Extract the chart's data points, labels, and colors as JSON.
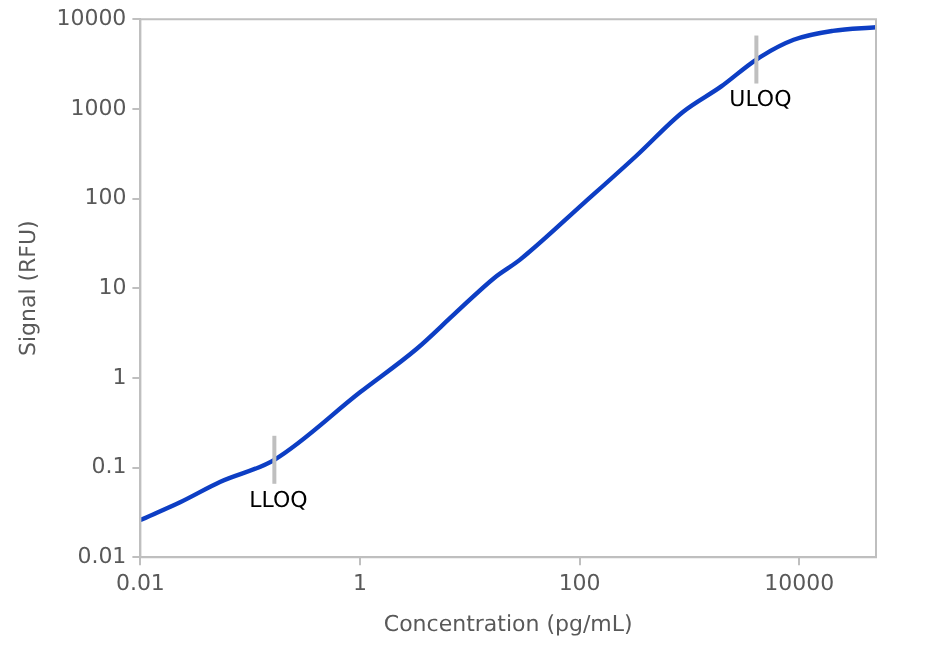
{
  "chart_data": {
    "type": "line",
    "xlabel": "Concentration (pg/mL)",
    "ylabel": "Signal (RFU)",
    "x": [
      0.01,
      0.023,
      0.053,
      0.166,
      1,
      3.27,
      7.3,
      16.8,
      28.5,
      111,
      331,
      861,
      1950,
      4070,
      8900,
      20200,
      50000
    ],
    "series": [
      {
        "color": "#0d3ec4",
        "values": [
          0.026,
          0.041,
          0.069,
          0.122,
          0.69,
          2.1,
          5.2,
          13.1,
          20.7,
          90.6,
          302,
          912,
          1780,
          3550,
          5890,
          7410,
          8130
        ]
      }
    ],
    "log": "xy",
    "xlim": [
      0.01,
      50000
    ],
    "xticks": [
      0.01,
      1,
      100,
      10000
    ],
    "ylim": [
      0.01,
      10000
    ],
    "yticks": [
      0.01,
      0.1,
      1,
      10,
      100,
      1000,
      10000
    ],
    "grid": false,
    "legend": false,
    "marker": "none",
    "line_style": "solid",
    "annotations": [
      {
        "text": "LLOQ",
        "x": 0.166,
        "y": 0.122
      },
      {
        "text": "ULOQ",
        "x": 4070,
        "y": 3550
      }
    ]
  }
}
